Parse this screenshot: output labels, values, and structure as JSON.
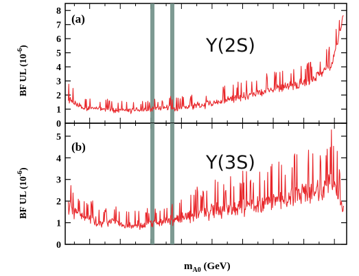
{
  "colors": {
    "series": "#e8262a",
    "veto_band": "#6f8f86",
    "frame": "#000000"
  },
  "x_label_main": "m",
  "x_label_sub": "A0",
  "x_label_unit": " (GeV)",
  "chart_data": [
    {
      "type": "line",
      "panel_label": "(a)",
      "annotation": "Υ(2S)",
      "ylabel": "BF UL (10",
      "ylabel_exp": "-6",
      "ylabel_close": ")",
      "ylim": [
        0,
        8.5
      ],
      "yticks": [
        0,
        1,
        2,
        3,
        4,
        5,
        6,
        7,
        8
      ],
      "xlim": [
        0.2,
        9.4
      ],
      "vbands": [
        3.05,
        3.7
      ],
      "series": [
        {
          "x": [
            0.3,
            0.5,
            0.7,
            0.9,
            1.1,
            1.3,
            1.5,
            1.7,
            1.9,
            2.1,
            2.3,
            2.5,
            2.7,
            2.9,
            3.1,
            3.3,
            3.5,
            3.7,
            3.9,
            4.1,
            4.3,
            4.5,
            4.7,
            4.9,
            5.1,
            5.3,
            5.5,
            5.7,
            5.9,
            6.1,
            6.3,
            6.5,
            6.7,
            6.9,
            7.1,
            7.3,
            7.5,
            7.7,
            7.9,
            8.1,
            8.3,
            8.5,
            8.7,
            8.9,
            9.1,
            9.3
          ],
          "values": [
            1.6,
            1.4,
            1.2,
            1.1,
            1.0,
            1.0,
            1.0,
            0.9,
            0.9,
            0.9,
            0.9,
            0.9,
            0.9,
            1.0,
            1.0,
            1.0,
            1.1,
            1.0,
            1.0,
            1.1,
            1.1,
            1.2,
            1.2,
            1.3,
            1.4,
            1.5,
            1.6,
            1.6,
            1.7,
            1.8,
            1.9,
            2.0,
            2.1,
            2.2,
            2.3,
            2.4,
            2.5,
            2.6,
            2.7,
            2.9,
            3.0,
            3.2,
            3.6,
            4.0,
            5.5,
            7.8
          ],
          "upper": [
            3.0,
            2.4,
            2.0,
            1.8,
            1.9,
            1.7,
            1.8,
            1.6,
            1.7,
            1.6,
            1.5,
            1.6,
            1.6,
            1.7,
            1.8,
            1.7,
            1.9,
            1.9,
            1.8,
            2.0,
            2.0,
            2.2,
            2.3,
            2.4,
            2.5,
            2.6,
            2.8,
            2.9,
            3.0,
            3.2,
            3.3,
            3.4,
            3.5,
            3.6,
            3.7,
            3.8,
            4.0,
            4.0,
            4.1,
            4.3,
            4.6,
            4.8,
            5.2,
            6.0,
            7.0,
            8.3
          ]
        }
      ]
    },
    {
      "type": "line",
      "panel_label": "(b)",
      "annotation": "Υ(3S)",
      "ylabel": "BF UL (10",
      "ylabel_exp": "-6",
      "ylabel_close": ")",
      "ylim": [
        0,
        5.6
      ],
      "yticks": [
        0,
        1,
        2,
        3,
        4,
        5
      ],
      "xlim": [
        0.2,
        9.4
      ],
      "vbands": [
        3.05,
        3.7
      ],
      "series": [
        {
          "x": [
            0.3,
            0.5,
            0.7,
            0.9,
            1.1,
            1.3,
            1.5,
            1.7,
            1.9,
            2.1,
            2.3,
            2.5,
            2.7,
            2.9,
            3.1,
            3.3,
            3.5,
            3.7,
            3.9,
            4.1,
            4.3,
            4.5,
            4.7,
            4.9,
            5.1,
            5.3,
            5.5,
            5.7,
            5.9,
            6.1,
            6.3,
            6.5,
            6.7,
            6.9,
            7.1,
            7.3,
            7.5,
            7.7,
            7.9,
            8.1,
            8.3,
            8.5,
            8.7,
            8.9,
            9.1,
            9.3
          ],
          "values": [
            1.5,
            1.4,
            1.3,
            1.2,
            1.1,
            1.0,
            1.0,
            1.0,
            1.0,
            0.9,
            0.9,
            0.9,
            0.9,
            1.0,
            1.0,
            1.0,
            1.1,
            1.1,
            1.1,
            1.2,
            1.2,
            1.2,
            1.3,
            1.3,
            1.4,
            1.4,
            1.4,
            1.5,
            1.5,
            1.5,
            1.6,
            1.6,
            1.7,
            1.7,
            1.8,
            1.8,
            1.9,
            1.9,
            2.0,
            2.0,
            2.1,
            2.1,
            2.3,
            2.5,
            2.2,
            1.6
          ],
          "upper": [
            3.6,
            2.6,
            2.2,
            2.0,
            2.1,
            1.8,
            1.7,
            1.7,
            1.8,
            1.6,
            1.5,
            1.6,
            1.6,
            1.7,
            1.7,
            1.8,
            2.0,
            2.0,
            2.1,
            2.4,
            2.6,
            2.7,
            2.8,
            2.9,
            3.0,
            3.0,
            3.1,
            3.2,
            3.3,
            3.5,
            3.4,
            3.6,
            3.7,
            3.7,
            3.8,
            4.0,
            4.0,
            4.2,
            4.4,
            4.5,
            4.6,
            4.8,
            5.2,
            5.4,
            4.4,
            2.6
          ]
        }
      ]
    }
  ]
}
